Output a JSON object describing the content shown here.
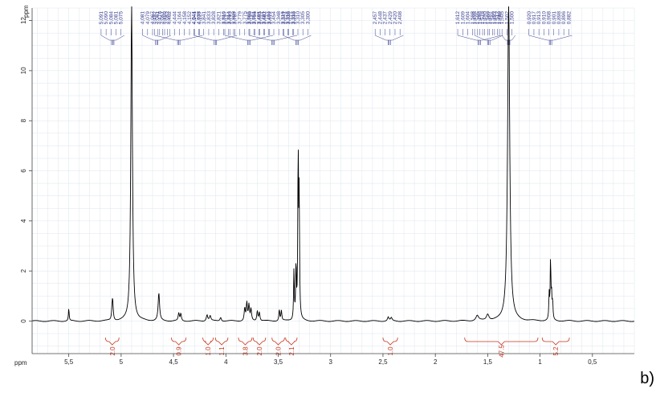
{
  "panel_label": "b)",
  "chart_data": {
    "type": "line",
    "unit_label": "ppm",
    "x_range": [
      5.85,
      0.1
    ],
    "y_range": [
      -1.3,
      12.5
    ],
    "x_ticks": [
      5.5,
      5,
      4.5,
      4,
      3.5,
      3,
      2.5,
      2,
      1.5,
      1,
      0.5
    ],
    "x_tick_labels": [
      "5,5",
      "5",
      "4,5",
      "4",
      "3,5",
      "3",
      "2,5",
      "2",
      "1,5",
      "1",
      "0,5"
    ],
    "y_ticks": [
      0,
      2,
      4,
      6,
      8,
      10,
      12
    ],
    "y_tick_labels": [
      "0",
      "2",
      "4",
      "6",
      "8",
      "10",
      "12"
    ],
    "grid": true,
    "colors": {
      "spectrum": "#000000",
      "peak_labels": "#3a3f8f",
      "integrals": "#c8341c",
      "grid": "#dde6ee"
    },
    "peaks": [
      {
        "ppm": 5.5,
        "height": 0.5,
        "width": 0.004
      },
      {
        "ppm": 5.085,
        "height": 0.5,
        "width": 0.006
      },
      {
        "ppm": 5.08,
        "height": 0.55,
        "width": 0.006
      },
      {
        "ppm": 4.9,
        "height": 12.8,
        "width": 0.009
      },
      {
        "ppm": 4.64,
        "height": 1.1,
        "width": 0.008
      },
      {
        "ppm": 4.45,
        "height": 0.3,
        "width": 0.006
      },
      {
        "ppm": 4.43,
        "height": 0.28,
        "width": 0.006
      },
      {
        "ppm": 4.18,
        "height": 0.25,
        "width": 0.008
      },
      {
        "ppm": 4.15,
        "height": 0.2,
        "width": 0.008
      },
      {
        "ppm": 4.05,
        "height": 0.15,
        "width": 0.008
      },
      {
        "ppm": 3.82,
        "height": 0.5,
        "width": 0.006
      },
      {
        "ppm": 3.8,
        "height": 0.7,
        "width": 0.006
      },
      {
        "ppm": 3.78,
        "height": 0.6,
        "width": 0.006
      },
      {
        "ppm": 3.76,
        "height": 0.45,
        "width": 0.006
      },
      {
        "ppm": 3.7,
        "height": 0.4,
        "width": 0.006
      },
      {
        "ppm": 3.68,
        "height": 0.35,
        "width": 0.006
      },
      {
        "ppm": 3.49,
        "height": 0.45,
        "width": 0.005
      },
      {
        "ppm": 3.47,
        "height": 0.4,
        "width": 0.005
      },
      {
        "ppm": 3.35,
        "height": 2.0,
        "width": 0.004
      },
      {
        "ppm": 3.33,
        "height": 2.2,
        "width": 0.004
      },
      {
        "ppm": 3.31,
        "height": 6.7,
        "width": 0.004
      },
      {
        "ppm": 3.3,
        "height": 4.8,
        "width": 0.004
      },
      {
        "ppm": 2.45,
        "height": 0.15,
        "width": 0.008
      },
      {
        "ppm": 2.42,
        "height": 0.12,
        "width": 0.008
      },
      {
        "ppm": 1.6,
        "height": 0.2,
        "width": 0.015
      },
      {
        "ppm": 1.5,
        "height": 0.25,
        "width": 0.015
      },
      {
        "ppm": 1.3,
        "height": 12.9,
        "width": 0.012
      },
      {
        "ppm": 0.913,
        "height": 1.0,
        "width": 0.004
      },
      {
        "ppm": 0.9,
        "height": 2.4,
        "width": 0.004
      },
      {
        "ppm": 0.89,
        "height": 0.9,
        "width": 0.004
      },
      {
        "ppm": 0.88,
        "height": 0.7,
        "width": 0.004
      }
    ],
    "peak_label_groups": [
      {
        "labels": [
          "5,091",
          "5,090",
          "5,084",
          "5,081",
          "5,075"
        ],
        "anchor_ppm": 5.08
      },
      {
        "labels": [
          "4,482",
          "4,476",
          "4,469",
          "4,462",
          "4,444",
          "4,164",
          "4,158",
          "4,152",
          "4,141",
          "4,127"
        ],
        "anchor_ppm": 4.45
      },
      {
        "labels": [
          "4,081",
          "4,079",
          "4,067",
          "4,061",
          "4,057",
          "4,052"
        ],
        "anchor_ppm": 4.66
      },
      {
        "labels": [
          "4,044",
          "4,038",
          "3,841",
          "3,833",
          "3,828",
          "3,821",
          "3,816",
          "3,814",
          "3,808"
        ],
        "anchor_ppm": 4.1
      },
      {
        "labels": [
          "3,797",
          "3,793",
          "3,787",
          "3,779",
          "3,775",
          "3,766",
          "3,756",
          "3,695",
          "3,682",
          "3,672"
        ],
        "anchor_ppm": 3.78
      },
      {
        "labels": [
          "3,665",
          "3,651",
          "3,491",
          "3,481",
          "3,464",
          "3,454",
          "3,348",
          "3,341",
          "3,338",
          "3,336"
        ],
        "anchor_ppm": 3.55
      },
      {
        "labels": [
          "3,319",
          "3,316",
          "3,313",
          "3,310",
          "3,305",
          "3,300"
        ],
        "anchor_ppm": 3.32
      },
      {
        "labels": [
          "2,457",
          "2,448",
          "2,437",
          "2,429",
          "2,420",
          "2,408"
        ],
        "anchor_ppm": 2.44
      },
      {
        "labels": [
          "1,612",
          "1,609",
          "1,604",
          "1,598",
          "1,595",
          "1,579",
          "1,568",
          "1,566",
          "1,512"
        ],
        "anchor_ppm": 1.58
      },
      {
        "labels": [
          "1,505",
          "1,502",
          "1,500"
        ],
        "anchor_ppm": 1.3
      },
      {
        "labels": [
          "1,498",
          "1,496",
          "1,490",
          "1,487",
          "1,483",
          "1,480"
        ],
        "anchor_ppm": 1.49
      },
      {
        "labels": [
          "0,920",
          "0,917",
          "0,913",
          "0,910",
          "0,908",
          "0,901",
          "0,898",
          "0,896",
          "0,882"
        ],
        "anchor_ppm": 0.9
      }
    ],
    "integrals": [
      {
        "label": "2.0",
        "from": 5.15,
        "to": 5.02
      },
      {
        "label": "0.9",
        "from": 4.52,
        "to": 4.38
      },
      {
        "label": "1.0",
        "from": 4.22,
        "to": 4.12
      },
      {
        "label": "1.1",
        "from": 4.1,
        "to": 3.98
      },
      {
        "label": "3.8",
        "from": 3.88,
        "to": 3.75
      },
      {
        "label": "2.0",
        "from": 3.74,
        "to": 3.62
      },
      {
        "label": "2.0",
        "from": 3.56,
        "to": 3.44
      },
      {
        "label": "2.1",
        "from": 3.43,
        "to": 3.32
      },
      {
        "label": "1.0",
        "from": 2.5,
        "to": 2.36
      },
      {
        "label": "47.5",
        "from": 1.72,
        "to": 1.02
      },
      {
        "label": "5.2",
        "from": 0.98,
        "to": 0.72
      }
    ]
  }
}
